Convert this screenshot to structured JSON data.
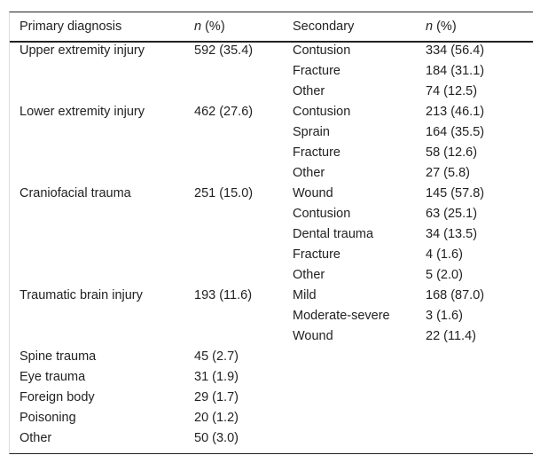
{
  "header": {
    "primary": "Primary diagnosis",
    "n_italic": "n",
    "pct": " (%)",
    "secondary": "Secondary"
  },
  "rows": [
    [
      "Upper extremity injury",
      "592 (35.4)",
      "Contusion",
      "334 (56.4)"
    ],
    [
      "",
      "",
      "Fracture",
      "184 (31.1)"
    ],
    [
      "",
      "",
      "Other",
      "74 (12.5)"
    ],
    [
      "Lower extremity injury",
      "462 (27.6)",
      "Contusion",
      "213 (46.1)"
    ],
    [
      "",
      "",
      "Sprain",
      "164 (35.5)"
    ],
    [
      "",
      "",
      "Fracture",
      "58 (12.6)"
    ],
    [
      "",
      "",
      "Other",
      "27 (5.8)"
    ],
    [
      "Craniofacial trauma",
      "251 (15.0)",
      "Wound",
      "145 (57.8)"
    ],
    [
      "",
      "",
      "Contusion",
      "63 (25.1)"
    ],
    [
      "",
      "",
      "Dental trauma",
      "34 (13.5)"
    ],
    [
      "",
      "",
      "Fracture",
      "4 (1.6)"
    ],
    [
      "",
      "",
      "Other",
      "5 (2.0)"
    ],
    [
      "Traumatic brain injury",
      "193 (11.6)",
      "Mild",
      "168 (87.0)"
    ],
    [
      "",
      "",
      "Moderate-severe",
      "3 (1.6)"
    ],
    [
      "",
      "",
      "Wound",
      "22 (11.4)"
    ],
    [
      "Spine trauma",
      "45 (2.7)",
      "",
      ""
    ],
    [
      "Eye trauma",
      "31 (1.9)",
      "",
      ""
    ],
    [
      "Foreign body",
      "29 (1.7)",
      "",
      ""
    ],
    [
      "Poisoning",
      "20 (1.2)",
      "",
      ""
    ],
    [
      "Other",
      "50 (3.0)",
      "",
      ""
    ]
  ]
}
